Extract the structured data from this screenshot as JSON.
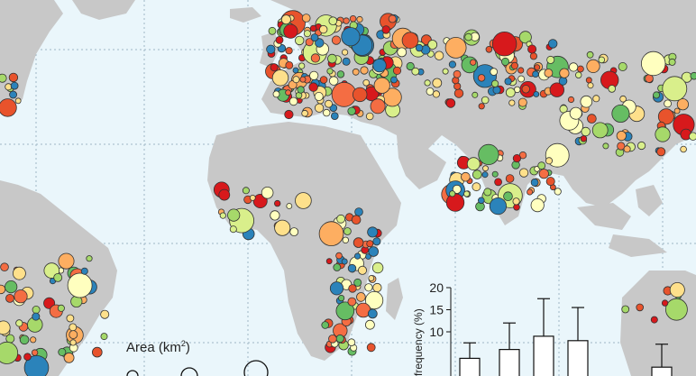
{
  "legend": {
    "title_text": "Area (km",
    "title_sup": "2",
    "title_close": ")"
  },
  "histogram": {
    "ylabel": "frequency (%)",
    "yticks": [
      "20",
      "15",
      "10"
    ],
    "ylim": [
      0,
      20
    ],
    "bar_values": [
      4,
      6,
      9,
      8,
      2
    ],
    "error_values": [
      7.5,
      12,
      17.5,
      15.5,
      7.2
    ]
  },
  "palette": {
    "ocean": "#eaf6fb",
    "land": "#c8c8c8",
    "low": "#d7191c",
    "mid": "#fdae61",
    "yellow": "#ffffbf",
    "green": "#a6d96a",
    "blue": "#2b83ba"
  }
}
